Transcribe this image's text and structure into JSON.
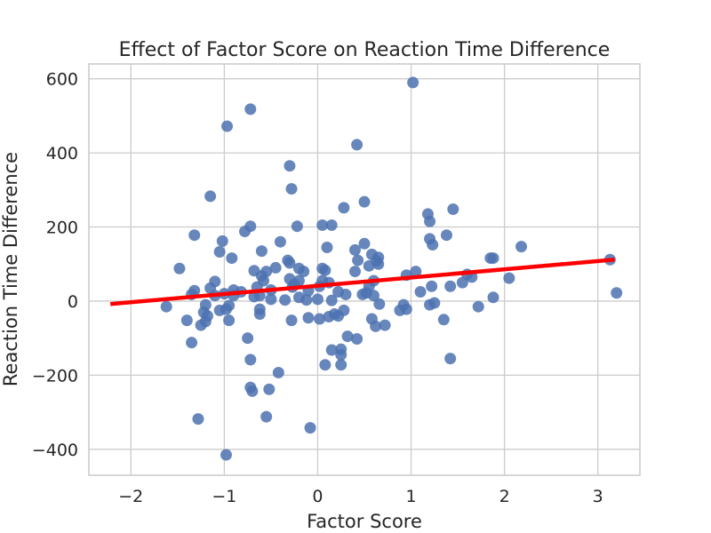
{
  "chart_data": {
    "type": "scatter",
    "title": "Effect of Factor Score on Reaction Time Difference",
    "xlabel": "Factor Score",
    "ylabel": "Reaction Time Difference",
    "xlim": [
      -2.45,
      3.45
    ],
    "ylim": [
      -470,
      640
    ],
    "xticks": [
      -2,
      -1,
      0,
      1,
      2,
      3
    ],
    "xtick_labels": [
      "−2",
      "−1",
      "0",
      "1",
      "2",
      "3"
    ],
    "yticks": [
      -400,
      -200,
      0,
      200,
      400,
      600
    ],
    "ytick_labels": [
      "−400",
      "−200",
      "0",
      "200",
      "400",
      "600"
    ],
    "grid": true,
    "legend": "none",
    "colors": {
      "points": "#4c72b0",
      "trend": "#ff0000",
      "grid": "#cccccc"
    },
    "points": [
      [
        1.02,
        590
      ],
      [
        -0.72,
        518
      ],
      [
        -0.97,
        472
      ],
      [
        0.42,
        422
      ],
      [
        -0.3,
        365
      ],
      [
        -0.28,
        303
      ],
      [
        -1.15,
        283
      ],
      [
        0.5,
        268
      ],
      [
        0.28,
        252
      ],
      [
        1.45,
        248
      ],
      [
        1.18,
        235
      ],
      [
        1.2,
        215
      ],
      [
        0.15,
        205
      ],
      [
        0.05,
        205
      ],
      [
        -0.22,
        202
      ],
      [
        -0.72,
        202
      ],
      [
        -0.78,
        188
      ],
      [
        1.38,
        178
      ],
      [
        -1.32,
        178
      ],
      [
        1.2,
        168
      ],
      [
        -1.02,
        162
      ],
      [
        -0.4,
        160
      ],
      [
        1.23,
        152
      ],
      [
        0.5,
        155
      ],
      [
        0.1,
        145
      ],
      [
        2.18,
        147
      ],
      [
        0.4,
        138
      ],
      [
        -0.6,
        135
      ],
      [
        -1.05,
        133
      ],
      [
        0.58,
        126
      ],
      [
        0.65,
        118
      ],
      [
        -0.92,
        116
      ],
      [
        1.85,
        116
      ],
      [
        1.88,
        116
      ],
      [
        0.63,
        108
      ],
      [
        -0.32,
        110
      ],
      [
        -0.3,
        103
      ],
      [
        0.43,
        110
      ],
      [
        0.65,
        100
      ],
      [
        0.55,
        95
      ],
      [
        -0.45,
        90
      ],
      [
        -1.48,
        88
      ],
      [
        -0.2,
        88
      ],
      [
        0.05,
        88
      ],
      [
        0.08,
        83
      ],
      [
        -0.15,
        80
      ],
      [
        0.4,
        80
      ],
      [
        -0.68,
        82
      ],
      [
        -0.55,
        80
      ],
      [
        1.05,
        80
      ],
      [
        -0.6,
        68
      ],
      [
        0.95,
        70
      ],
      [
        1.6,
        72
      ],
      [
        1.65,
        65
      ],
      [
        2.05,
        62
      ],
      [
        3.13,
        112
      ],
      [
        3.2,
        22
      ],
      [
        -1.1,
        53
      ],
      [
        -0.3,
        60
      ],
      [
        -0.2,
        55
      ],
      [
        -0.58,
        55
      ],
      [
        0.05,
        55
      ],
      [
        0.12,
        50
      ],
      [
        1.55,
        50
      ],
      [
        -0.25,
        45
      ],
      [
        0.02,
        40
      ],
      [
        -0.65,
        38
      ],
      [
        -0.27,
        38
      ],
      [
        0.6,
        55
      ],
      [
        0.55,
        40
      ],
      [
        1.22,
        40
      ],
      [
        1.42,
        40
      ],
      [
        -1.15,
        35
      ],
      [
        -0.9,
        30
      ],
      [
        -0.5,
        30
      ],
      [
        -0.1,
        28
      ],
      [
        -1.32,
        28
      ],
      [
        -0.82,
        25
      ],
      [
        0.22,
        25
      ],
      [
        0.3,
        18
      ],
      [
        0.48,
        18
      ],
      [
        0.6,
        15
      ],
      [
        0.52,
        22
      ],
      [
        1.1,
        25
      ],
      [
        -1.0,
        20
      ],
      [
        -1.35,
        18
      ],
      [
        -0.62,
        15
      ],
      [
        -0.9,
        15
      ],
      [
        -1.1,
        15
      ],
      [
        -0.68,
        12
      ],
      [
        -0.2,
        10
      ],
      [
        -0.5,
        5
      ],
      [
        -0.35,
        3
      ],
      [
        0.0,
        5
      ],
      [
        -0.12,
        3
      ],
      [
        0.15,
        2
      ],
      [
        -1.62,
        -15
      ],
      [
        -1.2,
        -10
      ],
      [
        -0.95,
        -12
      ],
      [
        -0.98,
        -22
      ],
      [
        -0.62,
        -22
      ],
      [
        0.66,
        -8
      ],
      [
        0.92,
        -10
      ],
      [
        1.25,
        -5
      ],
      [
        1.2,
        -10
      ],
      [
        0.95,
        -22
      ],
      [
        0.88,
        -25
      ],
      [
        0.28,
        -25
      ],
      [
        0.18,
        -35
      ],
      [
        0.22,
        -40
      ],
      [
        0.12,
        -42
      ],
      [
        1.72,
        -15
      ],
      [
        1.88,
        10
      ],
      [
        -1.05,
        -25
      ],
      [
        -1.22,
        -30
      ],
      [
        -1.18,
        -40
      ],
      [
        -0.62,
        -35
      ],
      [
        -0.1,
        -45
      ],
      [
        0.02,
        -48
      ],
      [
        -0.28,
        -52
      ],
      [
        -0.95,
        -52
      ],
      [
        -1.4,
        -52
      ],
      [
        -1.2,
        -55
      ],
      [
        -1.25,
        -65
      ],
      [
        0.58,
        -48
      ],
      [
        0.62,
        -68
      ],
      [
        0.72,
        -65
      ],
      [
        1.35,
        -50
      ],
      [
        -1.35,
        -112
      ],
      [
        0.15,
        -132
      ],
      [
        0.25,
        -130
      ],
      [
        0.32,
        -95
      ],
      [
        0.42,
        -102
      ],
      [
        0.25,
        -145
      ],
      [
        -0.75,
        -100
      ],
      [
        -0.72,
        -158
      ],
      [
        1.42,
        -155
      ],
      [
        0.08,
        -172
      ],
      [
        0.25,
        -172
      ],
      [
        -0.42,
        -193
      ],
      [
        -0.72,
        -233
      ],
      [
        -0.7,
        -243
      ],
      [
        -0.52,
        -238
      ],
      [
        -0.55,
        -312
      ],
      [
        -1.28,
        -318
      ],
      [
        -0.08,
        -342
      ],
      [
        -0.98,
        -415
      ]
    ],
    "trend_line": {
      "x": [
        -2.22,
        3.18
      ],
      "y": [
        -8,
        112
      ]
    }
  }
}
